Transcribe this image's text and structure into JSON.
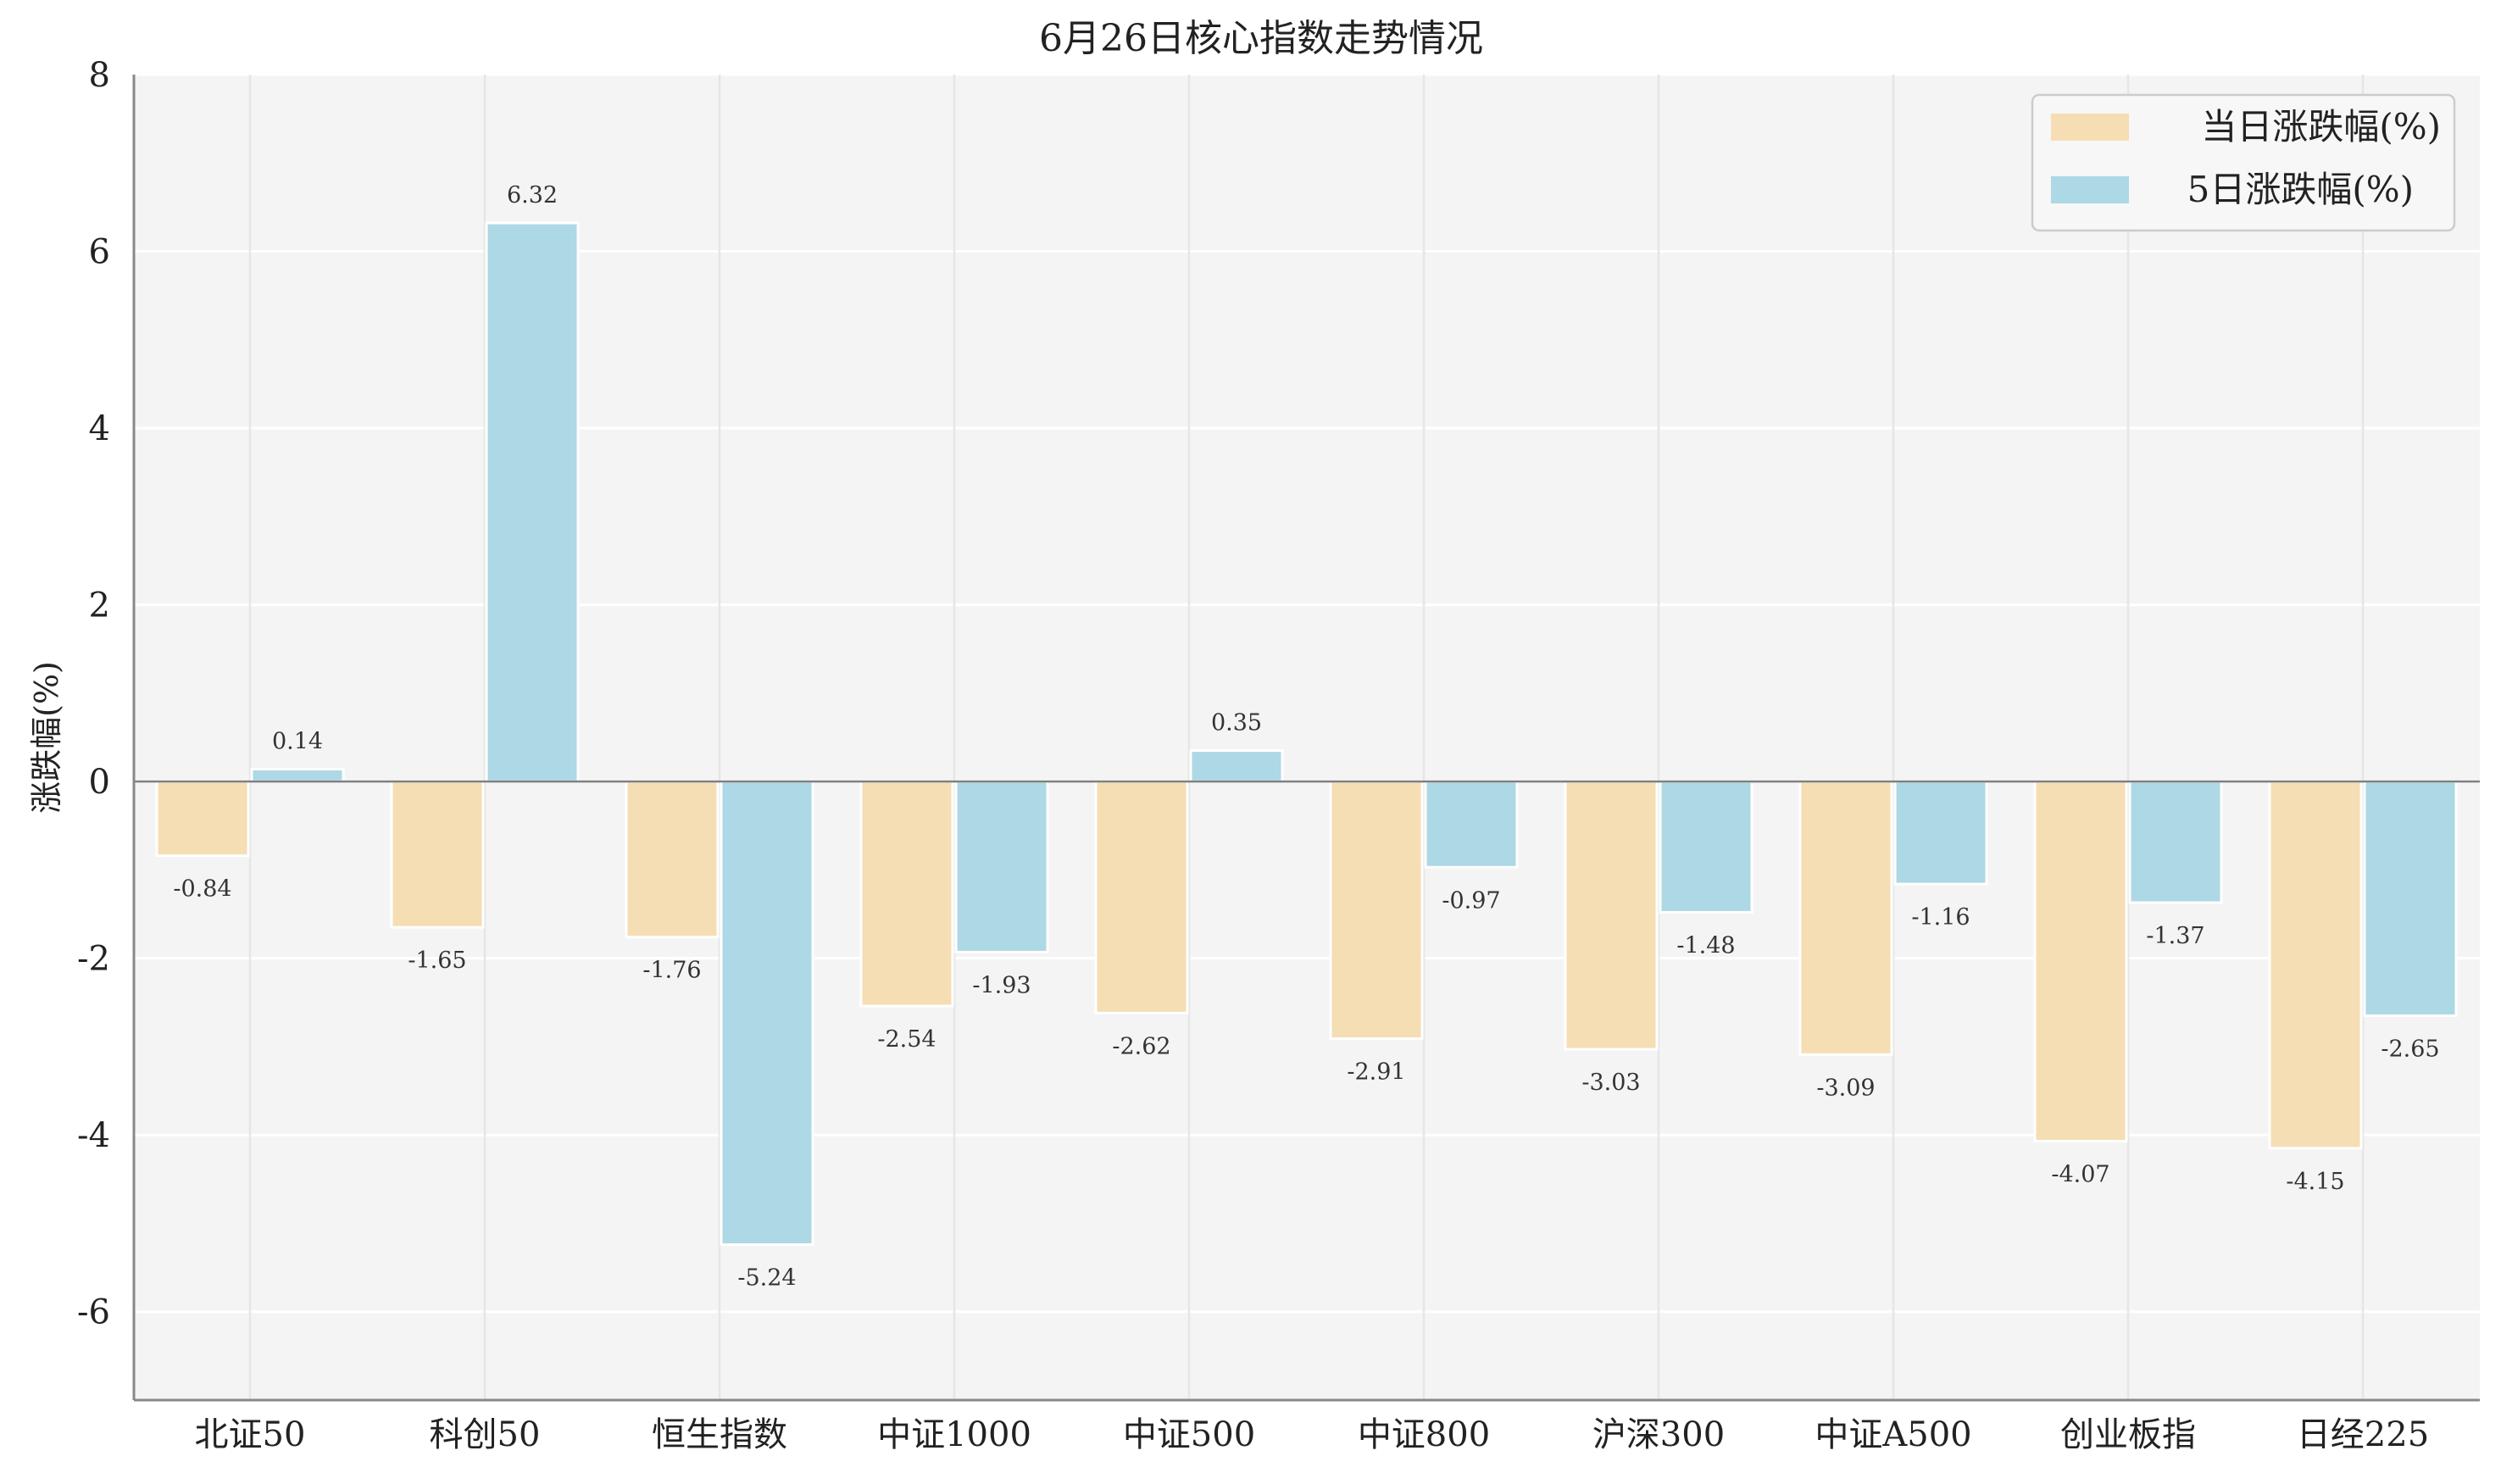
{
  "chart_data": {
    "type": "bar",
    "title": "6月26日核心指数走势情况",
    "xlabel": "",
    "ylabel": "涨跌幅(%)",
    "ylim": [
      -7,
      8
    ],
    "yticks": [
      8,
      6,
      4,
      2,
      0,
      -2,
      -4,
      -6
    ],
    "grid": true,
    "legend_position": "top-right",
    "categories": [
      "北证50",
      "科创50",
      "恒生指数",
      "中证1000",
      "中证500",
      "中证800",
      "沪深300",
      "中证A500",
      "创业板指",
      "日经225"
    ],
    "series": [
      {
        "name": "当日涨跌幅(%)",
        "color": "#F5DEB3",
        "values": [
          -0.84,
          -1.65,
          -1.76,
          -2.54,
          -2.62,
          -2.91,
          -3.03,
          -3.09,
          -4.07,
          -4.15
        ]
      },
      {
        "name": "5日涨跌幅(%)",
        "color": "#ADD8E6",
        "values": [
          0.14,
          6.32,
          -5.24,
          -1.93,
          0.35,
          -0.97,
          -1.48,
          -1.16,
          -1.37,
          -2.65
        ]
      }
    ]
  }
}
